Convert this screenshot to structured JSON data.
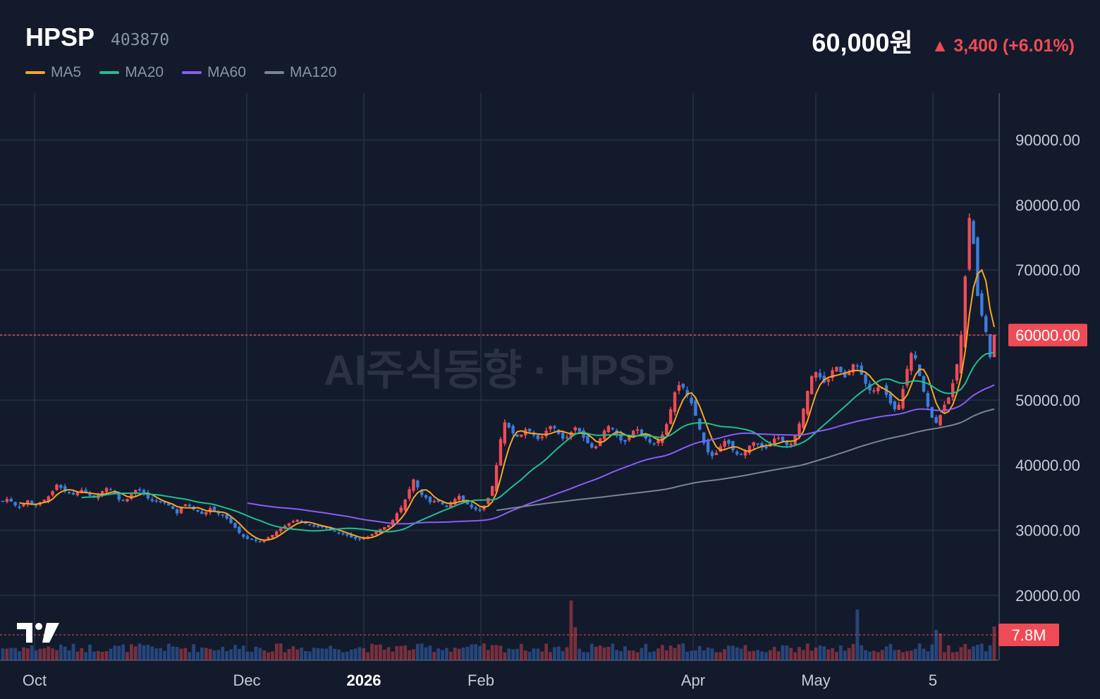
{
  "header": {
    "name": "HPSP",
    "code": "403870",
    "price": "60,000원",
    "change": "▲ 3,400 (+6.01%)"
  },
  "legend": [
    {
      "label": "MA5",
      "color": "#f5a623"
    },
    {
      "label": "MA20",
      "color": "#1fbf8f"
    },
    {
      "label": "MA60",
      "color": "#8b5cf6"
    },
    {
      "label": "MA120",
      "color": "#7b8494"
    }
  ],
  "watermark": "AI주식동향 · HPSP",
  "colors": {
    "up": "#ef4b55",
    "down": "#3b7ddd",
    "background": "#131a2b",
    "grid": "#263045"
  },
  "chart_data": {
    "type": "candlestick",
    "x_labels": [
      "Oct",
      "Dec",
      "2026",
      "Feb",
      "Apr",
      "May",
      "5"
    ],
    "y_ticks": [
      "20000.00",
      "30000.00",
      "40000.00",
      "50000.00",
      "60000.00",
      "70000.00",
      "80000.00",
      "90000.00"
    ],
    "ylim": [
      12000,
      98000
    ],
    "last_price": 60000,
    "last_price_label": "60000.00",
    "volume_label": "7.8M",
    "volume_last": 7.8,
    "closes": [
      34500,
      34800,
      34400,
      33800,
      33600,
      34000,
      34600,
      34000,
      33800,
      34300,
      34700,
      35200,
      36000,
      37000,
      36500,
      36000,
      35700,
      35500,
      35800,
      36200,
      35800,
      35300,
      35000,
      35400,
      36000,
      36500,
      36200,
      35600,
      34700,
      34600,
      34800,
      35600,
      36200,
      36100,
      35600,
      34900,
      34500,
      34400,
      34300,
      34200,
      33800,
      33300,
      32600,
      33600,
      34000,
      33700,
      33200,
      32900,
      32500,
      32800,
      33400,
      32900,
      32500,
      32300,
      31800,
      31100,
      30400,
      29600,
      29000,
      28700,
      28600,
      28400,
      28300,
      28400,
      28900,
      29300,
      29800,
      30300,
      30700,
      31100,
      31400,
      31600,
      31300,
      31000,
      30800,
      30600,
      30600,
      30500,
      30300,
      30000,
      29800,
      29600,
      29400,
      29200,
      28900,
      28700,
      28600,
      28800,
      29000,
      29400,
      29800,
      30200,
      30500,
      30800,
      31600,
      32600,
      33500,
      34700,
      36300,
      37800,
      36600,
      35400,
      35000,
      34300,
      34500,
      34400,
      34000,
      33600,
      34200,
      34800,
      35300,
      34600,
      34000,
      33500,
      33200,
      33100,
      33800,
      35000,
      36800,
      40000,
      44000,
      46600,
      45800,
      44900,
      44400,
      44700,
      45500,
      45200,
      44600,
      44000,
      44400,
      45300,
      46000,
      45700,
      44800,
      44100,
      44300,
      45100,
      45800,
      45200,
      44200,
      43400,
      42700,
      42900,
      44100,
      45300,
      46000,
      45500,
      44600,
      43800,
      43600,
      44400,
      45300,
      45500,
      44800,
      44100,
      43500,
      43300,
      43800,
      44700,
      46300,
      48600,
      51200,
      52300,
      51900,
      50700,
      49500,
      47600,
      45500,
      43400,
      42000,
      41400,
      41900,
      42900,
      43700,
      43300,
      42300,
      41700,
      41600,
      42100,
      43000,
      43500,
      43200,
      42700,
      42600,
      43300,
      44100,
      44200,
      43700,
      43100,
      43300,
      44600,
      46400,
      48700,
      51400,
      53700,
      54300,
      53500,
      52700,
      53200,
      54600,
      55100,
      54300,
      53500,
      54300,
      55500,
      55200,
      53900,
      52500,
      51500,
      51500,
      52000,
      51900,
      50800,
      49500,
      48600,
      49300,
      51700,
      54800,
      57200,
      56400,
      53700,
      51300,
      49000,
      47300,
      46500,
      47700,
      49300,
      50400,
      52600,
      55500,
      60000,
      69000,
      78000,
      74000,
      66000,
      63000,
      60500,
      56600,
      60000
    ]
  }
}
